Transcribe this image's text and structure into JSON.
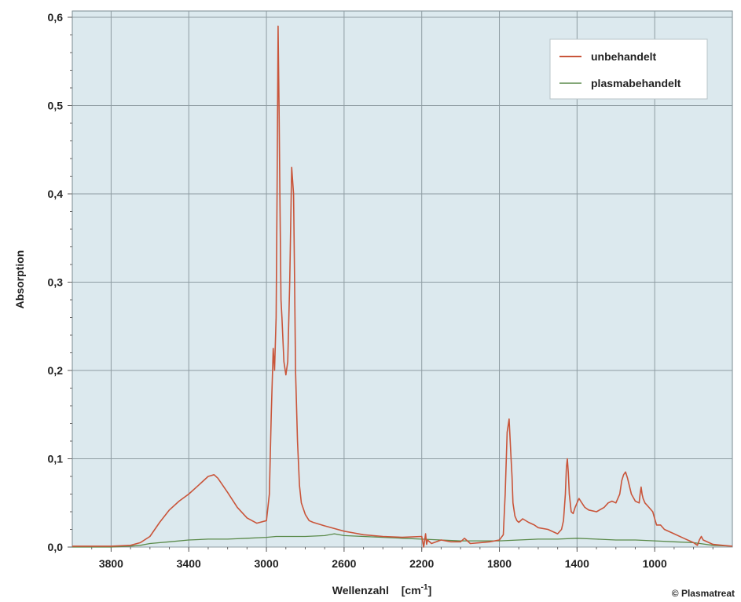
{
  "chart_data": {
    "type": "line",
    "title": "",
    "xlabel": "Wellenzahl",
    "xunit_base": "[cm",
    "xunit_sup": "-1",
    "xunit_end": "]",
    "ylabel": "Absorption",
    "credit": "© Plasmatreat",
    "xlim": [
      4000,
      600
    ],
    "ylim": [
      0,
      0.6
    ],
    "x_reversed": true,
    "grid": true,
    "legend_position": "top-right",
    "background_color": "#dce9ee",
    "x_ticks": [
      {
        "value": 3800,
        "label": "3800"
      },
      {
        "value": 3400,
        "label": "3400"
      },
      {
        "value": 3000,
        "label": "3000"
      },
      {
        "value": 2600,
        "label": "2600"
      },
      {
        "value": 2200,
        "label": "2200"
      },
      {
        "value": 1800,
        "label": "1800"
      },
      {
        "value": 1400,
        "label": "1400"
      },
      {
        "value": 1000,
        "label": "1000"
      }
    ],
    "y_ticks": [
      {
        "value": 0.0,
        "label": "0,0"
      },
      {
        "value": 0.1,
        "label": "0,1"
      },
      {
        "value": 0.2,
        "label": "0,2"
      },
      {
        "value": 0.3,
        "label": "0,3"
      },
      {
        "value": 0.4,
        "label": "0,4"
      },
      {
        "value": 0.5,
        "label": "0,5"
      },
      {
        "value": 0.6,
        "label": "0,6"
      }
    ],
    "series": [
      {
        "name": "unbehandelt",
        "color": "#c9553a",
        "x": [
          4000,
          3800,
          3700,
          3650,
          3600,
          3550,
          3500,
          3450,
          3400,
          3350,
          3300,
          3270,
          3250,
          3200,
          3150,
          3100,
          3050,
          3000,
          2985,
          2975,
          2965,
          2958,
          2950,
          2945,
          2940,
          2935,
          2930,
          2925,
          2920,
          2910,
          2900,
          2890,
          2880,
          2870,
          2860,
          2855,
          2850,
          2840,
          2830,
          2820,
          2800,
          2780,
          2760,
          2700,
          2650,
          2600,
          2550,
          2500,
          2400,
          2300,
          2200,
          2190,
          2180,
          2175,
          2170,
          2150,
          2100,
          2050,
          2000,
          1980,
          1950,
          1900,
          1850,
          1800,
          1780,
          1770,
          1760,
          1750,
          1740,
          1735,
          1730,
          1720,
          1710,
          1700,
          1680,
          1650,
          1620,
          1600,
          1550,
          1500,
          1480,
          1470,
          1460,
          1455,
          1450,
          1445,
          1440,
          1430,
          1420,
          1410,
          1390,
          1375,
          1360,
          1340,
          1300,
          1260,
          1240,
          1220,
          1200,
          1180,
          1170,
          1160,
          1150,
          1140,
          1120,
          1100,
          1080,
          1075,
          1070,
          1065,
          1060,
          1050,
          1030,
          1010,
          1000,
          990,
          970,
          950,
          900,
          850,
          800,
          780,
          770,
          760,
          750,
          700,
          650,
          600
        ],
        "values": [
          0.001,
          0.001,
          0.002,
          0.005,
          0.012,
          0.028,
          0.042,
          0.052,
          0.06,
          0.07,
          0.08,
          0.082,
          0.078,
          0.062,
          0.045,
          0.033,
          0.027,
          0.03,
          0.06,
          0.15,
          0.225,
          0.2,
          0.26,
          0.4,
          0.59,
          0.5,
          0.38,
          0.28,
          0.26,
          0.21,
          0.195,
          0.21,
          0.3,
          0.43,
          0.4,
          0.3,
          0.2,
          0.12,
          0.07,
          0.05,
          0.037,
          0.03,
          0.028,
          0.024,
          0.021,
          0.018,
          0.016,
          0.014,
          0.012,
          0.011,
          0.012,
          0.0,
          0.015,
          0.003,
          0.008,
          0.004,
          0.008,
          0.006,
          0.006,
          0.01,
          0.004,
          0.005,
          0.006,
          0.008,
          0.014,
          0.06,
          0.13,
          0.145,
          0.1,
          0.08,
          0.05,
          0.035,
          0.03,
          0.028,
          0.032,
          0.028,
          0.025,
          0.022,
          0.02,
          0.015,
          0.02,
          0.03,
          0.06,
          0.09,
          0.1,
          0.085,
          0.06,
          0.04,
          0.038,
          0.045,
          0.055,
          0.05,
          0.045,
          0.042,
          0.04,
          0.045,
          0.05,
          0.052,
          0.05,
          0.06,
          0.075,
          0.082,
          0.085,
          0.078,
          0.06,
          0.052,
          0.05,
          0.06,
          0.068,
          0.06,
          0.055,
          0.05,
          0.045,
          0.04,
          0.032,
          0.025,
          0.025,
          0.02,
          0.015,
          0.01,
          0.005,
          0.002,
          0.008,
          0.012,
          0.008,
          0.003,
          0.002,
          0.001
        ]
      },
      {
        "name": "plasmabehandelt",
        "color": "#5a8a4a",
        "x": [
          4000,
          3800,
          3700,
          3650,
          3600,
          3500,
          3400,
          3300,
          3200,
          3100,
          3000,
          2950,
          2900,
          2850,
          2800,
          2700,
          2650,
          2600,
          2500,
          2400,
          2300,
          2200,
          2100,
          2000,
          1900,
          1800,
          1700,
          1600,
          1500,
          1400,
          1300,
          1200,
          1100,
          1000,
          900,
          800,
          700,
          600
        ],
        "values": [
          0.0,
          0.0,
          0.001,
          0.002,
          0.004,
          0.006,
          0.008,
          0.009,
          0.009,
          0.01,
          0.011,
          0.012,
          0.012,
          0.012,
          0.012,
          0.013,
          0.015,
          0.013,
          0.012,
          0.011,
          0.01,
          0.009,
          0.008,
          0.007,
          0.007,
          0.007,
          0.008,
          0.009,
          0.009,
          0.01,
          0.009,
          0.008,
          0.008,
          0.007,
          0.006,
          0.005,
          0.002,
          0.001
        ]
      }
    ]
  }
}
